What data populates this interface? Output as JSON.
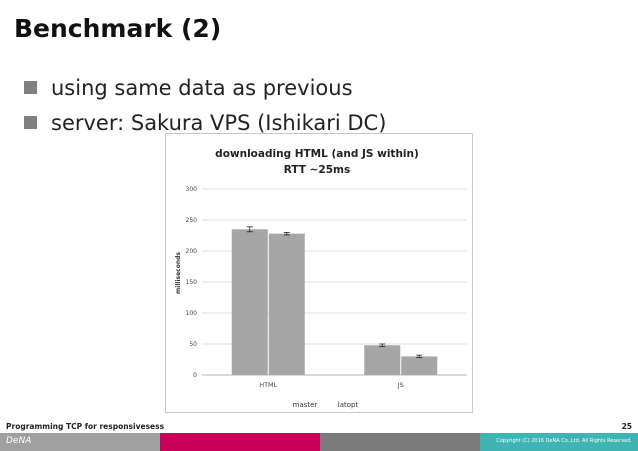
{
  "slide": {
    "title": "Benchmark (2)",
    "bullets": [
      "using same data as previous",
      "server: Sakura VPS (Ishikari DC)"
    ]
  },
  "chart_data": {
    "type": "bar",
    "title": "downloading HTML (and JS within)",
    "subtitle": "RTT ~25ms",
    "xlabel": "",
    "ylabel": "milliseconds",
    "categories": [
      "HTML",
      "JS"
    ],
    "series": [
      {
        "name": "master",
        "values": [
          235,
          48
        ],
        "errors": [
          4,
          2
        ]
      },
      {
        "name": "latopt",
        "values": [
          228,
          30
        ],
        "errors": [
          2,
          2
        ]
      }
    ],
    "ylim": [
      0,
      300
    ],
    "yticks": [
      0,
      50,
      100,
      150,
      200,
      250,
      300
    ],
    "grid": true,
    "legend": "bottom",
    "bar_color": "#a6a6a6",
    "colors": [
      "#a6a6a6",
      "#a6a6a6"
    ]
  },
  "footer": {
    "title": "Programming TCP for responsivesess",
    "page_number": "25",
    "logo": "DeNA",
    "copyright": "Copyright (C) 2016 DeNA Co.,Ltd. All Rights Reserved.",
    "bar_colors": [
      "#a0a0a0",
      "#c8005a",
      "#7a7a7a",
      "#3fb4b4"
    ]
  }
}
